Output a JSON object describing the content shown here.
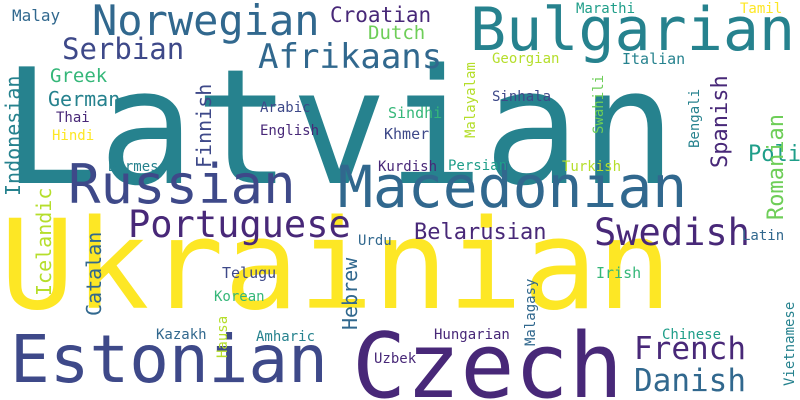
{
  "colors": {
    "background": "#ffffff",
    "palette": [
      "#fde725",
      "#b5de2b",
      "#6ece58",
      "#35b779",
      "#1f9e89",
      "#26828e",
      "#31688e",
      "#3e4989",
      "#482878",
      "#440154"
    ]
  },
  "words": [
    {
      "text": "Latvian",
      "color": "#26828e"
    },
    {
      "text": "Ukrainian",
      "color": "#fde725"
    },
    {
      "text": "Czech",
      "color": "#482878"
    },
    {
      "text": "Estonian",
      "color": "#3e4989"
    },
    {
      "text": "Macedonian",
      "color": "#31688e"
    },
    {
      "text": "Bulgarian",
      "color": "#26828e"
    },
    {
      "text": "Russian",
      "color": "#3e4989"
    },
    {
      "text": "Norwegian",
      "color": "#31688e"
    },
    {
      "text": "Portuguese",
      "color": "#482878"
    },
    {
      "text": "Swedish",
      "color": "#482878"
    },
    {
      "text": "Afrikaans",
      "color": "#31688e"
    },
    {
      "text": "French",
      "color": "#482878"
    },
    {
      "text": "Danish",
      "color": "#31688e"
    },
    {
      "text": "Serbian",
      "color": "#3e4989"
    },
    {
      "text": "Croatian",
      "color": "#482878"
    },
    {
      "text": "Belarusian",
      "color": "#482878"
    },
    {
      "text": "German",
      "color": "#26828e"
    },
    {
      "text": "Dutch",
      "color": "#6ece58"
    },
    {
      "text": "Greek",
      "color": "#35b779"
    },
    {
      "text": "Polish",
      "color": "#1f9e89"
    },
    {
      "text": "Spanish",
      "color": "#482878"
    },
    {
      "text": "Romanian",
      "color": "#6ece58"
    },
    {
      "text": "Indonesian",
      "color": "#26828e"
    },
    {
      "text": "Finnish",
      "color": "#3e4989"
    },
    {
      "text": "Catalan",
      "color": "#31688e"
    },
    {
      "text": "Icelandic",
      "color": "#b5de2b"
    },
    {
      "text": "Hebrew",
      "color": "#31688e"
    },
    {
      "text": "Malay",
      "color": "#31688e"
    },
    {
      "text": "Marathi",
      "color": "#1f9e89"
    },
    {
      "text": "Tamil",
      "color": "#fde725"
    },
    {
      "text": "Georgian",
      "color": "#b5de2b"
    },
    {
      "text": "Italian",
      "color": "#26828e"
    },
    {
      "text": "Thai",
      "color": "#482878"
    },
    {
      "text": "Hindi",
      "color": "#fde725"
    },
    {
      "text": "Arabic",
      "color": "#3e4989"
    },
    {
      "text": "English",
      "color": "#482878"
    },
    {
      "text": "Sindhi",
      "color": "#35b779"
    },
    {
      "text": "Khmer",
      "color": "#3e4989"
    },
    {
      "text": "Sinhala",
      "color": "#3e4989"
    },
    {
      "text": "Malayalam",
      "color": "#b5de2b"
    },
    {
      "text": "Swahili",
      "color": "#6ece58"
    },
    {
      "text": "Bengali",
      "color": "#26828e"
    },
    {
      "text": "Burmese",
      "color": "#26828e"
    },
    {
      "text": "Kurdish",
      "color": "#482878"
    },
    {
      "text": "Persian",
      "color": "#1f9e89"
    },
    {
      "text": "Turkish",
      "color": "#b5de2b"
    },
    {
      "text": "Urdu",
      "color": "#31688e"
    },
    {
      "text": "Latin",
      "color": "#31688e"
    },
    {
      "text": "Telugu",
      "color": "#3e4989"
    },
    {
      "text": "Irish",
      "color": "#35b779"
    },
    {
      "text": "Korean",
      "color": "#35b779"
    },
    {
      "text": "Hausa",
      "color": "#b5de2b"
    },
    {
      "text": "Malagasy",
      "color": "#31688e"
    },
    {
      "text": "Kazakh",
      "color": "#31688e"
    },
    {
      "text": "Amharic",
      "color": "#26828e"
    },
    {
      "text": "Hungarian",
      "color": "#482878"
    },
    {
      "text": "Chinese",
      "color": "#1f9e89"
    },
    {
      "text": "Uzbek",
      "color": "#482878"
    },
    {
      "text": "Vietnamese",
      "color": "#26828e"
    }
  ]
}
